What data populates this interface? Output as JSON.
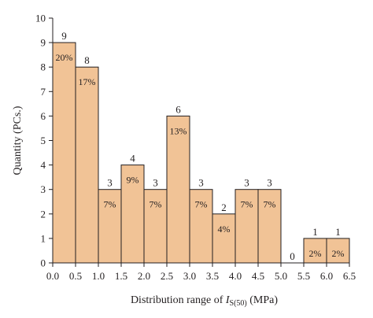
{
  "chart_data": {
    "type": "bar",
    "bins": [
      {
        "range": [
          0.0,
          0.5
        ],
        "count": 9,
        "percent": "20%"
      },
      {
        "range": [
          0.5,
          1.0
        ],
        "count": 8,
        "percent": "17%"
      },
      {
        "range": [
          1.0,
          1.5
        ],
        "count": 3,
        "percent": "7%"
      },
      {
        "range": [
          1.5,
          2.0
        ],
        "count": 4,
        "percent": "9%"
      },
      {
        "range": [
          2.0,
          2.5
        ],
        "count": 3,
        "percent": "7%"
      },
      {
        "range": [
          2.5,
          3.0
        ],
        "count": 6,
        "percent": "13%"
      },
      {
        "range": [
          3.0,
          3.5
        ],
        "count": 3,
        "percent": "7%"
      },
      {
        "range": [
          3.5,
          4.0
        ],
        "count": 2,
        "percent": "4%"
      },
      {
        "range": [
          4.0,
          4.5
        ],
        "count": 3,
        "percent": "7%"
      },
      {
        "range": [
          4.5,
          5.0
        ],
        "count": 3,
        "percent": "7%"
      },
      {
        "range": [
          5.0,
          5.5
        ],
        "count": 0,
        "percent": ""
      },
      {
        "range": [
          5.5,
          6.0
        ],
        "count": 1,
        "percent": "2%"
      },
      {
        "range": [
          6.0,
          6.5
        ],
        "count": 1,
        "percent": "2%"
      }
    ],
    "xlabel": {
      "prefix": "Distribution range of ",
      "symbol": "I",
      "subscript": "S(50)",
      "suffix": " (MPa)"
    },
    "ylabel": "Quantity (PCs.)",
    "xlim": [
      0.0,
      6.5
    ],
    "ylim": [
      0,
      10
    ],
    "xticks": [
      "0.0",
      "0.5",
      "1.0",
      "1.5",
      "2.0",
      "2.5",
      "3.0",
      "3.5",
      "4.0",
      "4.5",
      "5.0",
      "5.5",
      "6.0",
      "6.5"
    ],
    "yticks": [
      "0",
      "1",
      "2",
      "3",
      "4",
      "5",
      "6",
      "7",
      "8",
      "9",
      "10"
    ],
    "grid": false,
    "bar_color": "#f1c396",
    "edge_color": "#231f20"
  }
}
